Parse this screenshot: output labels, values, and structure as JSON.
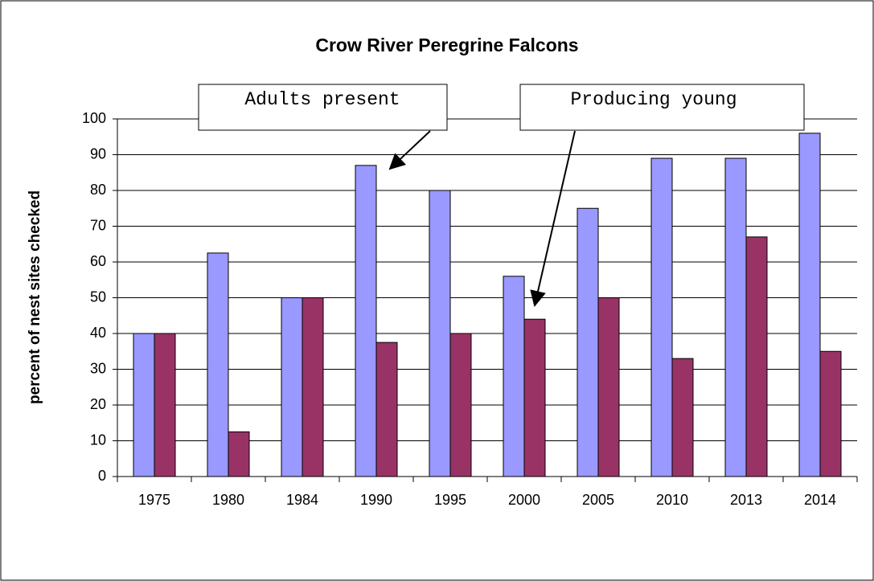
{
  "chart_data": {
    "type": "bar",
    "title": "Crow River Peregrine Falcons",
    "y_label": "percent of nest sites checked",
    "categories": [
      "1975",
      "1980",
      "1984",
      "1990",
      "1995",
      "2000",
      "2005",
      "2010",
      "2013",
      "2014"
    ],
    "series": [
      {
        "name": "Adults present",
        "color": "#9999ff",
        "values": [
          40,
          62.5,
          50,
          87,
          80,
          56,
          75,
          89,
          89,
          96
        ]
      },
      {
        "name": "Producing young",
        "color": "#993366",
        "values": [
          40,
          12.5,
          50,
          37.5,
          40,
          44,
          50,
          33,
          67,
          35
        ]
      }
    ],
    "ylim": [
      0,
      100
    ],
    "yticks": [
      0,
      10,
      20,
      30,
      40,
      50,
      60,
      70,
      80,
      90,
      100
    ],
    "grid": true
  }
}
